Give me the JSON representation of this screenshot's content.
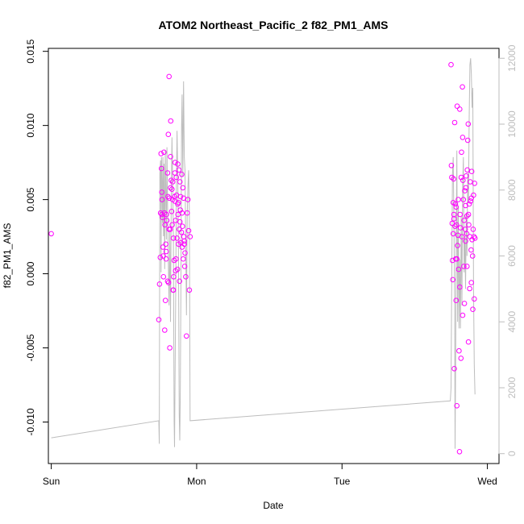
{
  "chart_data": {
    "type": "scatter",
    "title": "ATOM2 Northeast_Pacific_2 f82_PM1_AMS",
    "xlabel": "Date",
    "ylabel": "f82_PM1_AMS",
    "x_ticks": [
      "Sun",
      "Mon",
      "Tue",
      "Wed"
    ],
    "xlim": [
      -0.02,
      3.08
    ],
    "ylim": [
      -0.0128,
      0.0152
    ],
    "y_ticks": [
      -0.01,
      -0.005,
      0.0,
      0.005,
      0.01,
      0.015
    ],
    "y_tick_labels": [
      "-0.010",
      "-0.005",
      "0.000",
      "0.005",
      "0.010",
      "0.015"
    ],
    "y2lim": [
      -300,
      12300
    ],
    "y2_ticks": [
      0,
      2000,
      4000,
      6000,
      8000,
      10000,
      12000
    ],
    "y2_tick_labels": [
      "0",
      "2000",
      "4000",
      "6000",
      "8000",
      "10000",
      "12000"
    ],
    "grid": false,
    "colors": {
      "points": "#ff00ff",
      "secondary_line": "#bdbdbd",
      "axes": "#000000",
      "secondary_axis": "#bdbdbd"
    },
    "series": [
      {
        "kind": "points",
        "axis": "left",
        "points": [
          [
            0.0,
            0.0027
          ],
          [
            0.74,
            -0.0031
          ],
          [
            0.745,
            -0.0007
          ],
          [
            0.75,
            0.0011
          ],
          [
            0.752,
            0.0041
          ],
          [
            0.755,
            0.0081
          ],
          [
            0.758,
            0.0071
          ],
          [
            0.76,
            0.0055
          ],
          [
            0.762,
            0.005
          ],
          [
            0.765,
            0.0038
          ],
          [
            0.768,
            0.0018
          ],
          [
            0.77,
            0.0012
          ],
          [
            0.772,
            -0.0002
          ],
          [
            0.775,
            0.0082
          ],
          [
            0.778,
            0.0041
          ],
          [
            0.78,
            -0.0038
          ],
          [
            0.782,
            0.0033
          ],
          [
            0.785,
            -0.0018
          ],
          [
            0.788,
            0.002
          ],
          [
            0.79,
            0.0015
          ],
          [
            0.792,
            0.004
          ],
          [
            0.795,
            0.0036
          ],
          [
            0.8,
            0.0068
          ],
          [
            0.803,
            0.0052
          ],
          [
            0.805,
            0.0094
          ],
          [
            0.807,
            -0.0006
          ],
          [
            0.81,
            0.0133
          ],
          [
            0.812,
            0.0051
          ],
          [
            0.815,
            -0.005
          ],
          [
            0.818,
            0.003
          ],
          [
            0.82,
            0.0079
          ],
          [
            0.822,
            0.0103
          ],
          [
            0.825,
            0.0063
          ],
          [
            0.828,
            0.0042
          ],
          [
            0.83,
            0.0057
          ],
          [
            0.832,
            0.0033
          ],
          [
            0.835,
            0.005
          ],
          [
            0.838,
            -0.0011
          ],
          [
            0.84,
            0.0024
          ],
          [
            0.842,
            -0.0002
          ],
          [
            0.845,
            0.0009
          ],
          [
            0.848,
            0.0052
          ],
          [
            0.85,
            0.0068
          ],
          [
            0.852,
            0.0075
          ],
          [
            0.855,
            0.0036
          ],
          [
            0.858,
            0.001
          ],
          [
            0.86,
            0.0065
          ],
          [
            0.862,
            0.0053
          ],
          [
            0.865,
            0.0024
          ],
          [
            0.868,
            0.0003
          ],
          [
            0.87,
            0.0074
          ],
          [
            0.872,
            0.004
          ],
          [
            0.875,
            0.0048
          ],
          [
            0.878,
            0.007
          ],
          [
            0.88,
            0.003
          ],
          [
            0.882,
            -0.0005
          ],
          [
            0.885,
            0.0062
          ],
          [
            0.888,
            0.0043
          ],
          [
            0.89,
            0.0052
          ],
          [
            0.892,
            0.0021
          ],
          [
            0.895,
            0.0028
          ],
          [
            0.898,
            0.0067
          ],
          [
            0.9,
            0.0018
          ],
          [
            0.902,
            0.0032
          ],
          [
            0.905,
            0.0058
          ],
          [
            0.908,
            0.001
          ],
          [
            0.91,
            0.0051
          ],
          [
            0.912,
            0.0025
          ],
          [
            0.915,
            0.0022
          ],
          [
            0.918,
            0.0005
          ],
          [
            0.92,
            0.0014
          ],
          [
            0.925,
            -0.0002
          ],
          [
            0.93,
            -0.0042
          ],
          [
            0.935,
            0.0041
          ],
          [
            0.94,
            0.005
          ],
          [
            0.945,
            0.0029
          ],
          [
            0.95,
            -0.0011
          ],
          [
            0.955,
            0.0025
          ],
          [
            0.8,
            -0.0005
          ],
          [
            0.81,
            0.003
          ],
          [
            0.82,
            0.0058
          ],
          [
            0.835,
            0.0062
          ],
          [
            0.84,
            -0.0011
          ],
          [
            0.855,
            0.0002
          ],
          [
            0.87,
            0.0047
          ],
          [
            0.885,
            0.0035
          ],
          [
            0.9,
            0.0041
          ],
          [
            0.915,
            0.002
          ],
          [
            0.76,
            0.004
          ],
          [
            0.79,
            0.001
          ],
          [
            0.85,
            0.0049
          ],
          [
            0.875,
            0.002
          ],
          [
            2.75,
            0.0141
          ],
          [
            2.752,
            0.0073
          ],
          [
            2.755,
            0.0065
          ],
          [
            2.758,
            0.0034
          ],
          [
            2.76,
            0.0009
          ],
          [
            2.762,
            -0.0004
          ],
          [
            2.765,
            0.0048
          ],
          [
            2.768,
            0.0064
          ],
          [
            2.77,
            0.0037
          ],
          [
            2.772,
            -0.0064
          ],
          [
            2.775,
            0.0102
          ],
          [
            2.778,
            0.0032
          ],
          [
            2.78,
            0.0047
          ],
          [
            2.782,
            0.001
          ],
          [
            2.785,
            -0.0018
          ],
          [
            2.788,
            0.0033
          ],
          [
            2.79,
            -0.0089
          ],
          [
            2.792,
            0.0113
          ],
          [
            2.795,
            0.0019
          ],
          [
            2.798,
            0.0026
          ],
          [
            2.8,
            0.005
          ],
          [
            2.802,
            0.0003
          ],
          [
            2.805,
            -0.0052
          ],
          [
            2.808,
            -0.012
          ],
          [
            2.81,
            0.0111
          ],
          [
            2.812,
            0.004
          ],
          [
            2.815,
            0.0031
          ],
          [
            2.818,
            -0.0057
          ],
          [
            2.82,
            0.0065
          ],
          [
            2.822,
            0.0082
          ],
          [
            2.825,
            0.0025
          ],
          [
            2.828,
            0.0126
          ],
          [
            2.83,
            0.0092
          ],
          [
            2.832,
            0.0063
          ],
          [
            2.835,
            0.005
          ],
          [
            2.838,
            0.0005
          ],
          [
            2.84,
            0.0036
          ],
          [
            2.842,
            -0.002
          ],
          [
            2.845,
            0.0056
          ],
          [
            2.848,
            0.003
          ],
          [
            2.85,
            0.0046
          ],
          [
            2.852,
            0.0058
          ],
          [
            2.855,
            0.0066
          ],
          [
            2.858,
            0.0027
          ],
          [
            2.86,
            0.0039
          ],
          [
            2.862,
            0.007
          ],
          [
            2.865,
            0.009
          ],
          [
            2.868,
            0.0101
          ],
          [
            2.87,
            0.004
          ],
          [
            2.872,
            0.0033
          ],
          [
            2.875,
            0.0047
          ],
          [
            2.878,
            -0.001
          ],
          [
            2.88,
            0.0025
          ],
          [
            2.882,
            0.0062
          ],
          [
            2.885,
            0.0049
          ],
          [
            2.888,
            0.0016
          ],
          [
            2.89,
            -0.0006
          ],
          [
            2.892,
            0.0069
          ],
          [
            2.895,
            0.0023
          ],
          [
            2.898,
            0.0012
          ],
          [
            2.9,
            -0.0024
          ],
          [
            2.902,
            0.003
          ],
          [
            2.905,
            0.0053
          ],
          [
            2.908,
            0.0025
          ],
          [
            2.91,
            -0.0017
          ],
          [
            2.912,
            0.0061
          ],
          [
            2.915,
            0.0024
          ],
          [
            2.77,
            0.004
          ],
          [
            2.79,
            0.001
          ],
          [
            2.81,
            -0.0009
          ],
          [
            2.83,
            -0.0028
          ],
          [
            2.85,
            0.0022
          ],
          [
            2.87,
            -0.0046
          ],
          [
            2.89,
            0.0051
          ],
          [
            2.765,
            0.0027
          ],
          [
            2.785,
            0.0045
          ],
          [
            2.86,
            0.0005
          ]
        ]
      },
      {
        "kind": "line",
        "axis": "right",
        "points": [
          [
            0.0,
            480
          ],
          [
            0.74,
            1000
          ],
          [
            0.743,
            300
          ],
          [
            0.747,
            8500
          ],
          [
            0.752,
            8900
          ],
          [
            0.755,
            5500
          ],
          [
            0.758,
            9000
          ],
          [
            0.762,
            8200
          ],
          [
            0.765,
            7000
          ],
          [
            0.768,
            9000
          ],
          [
            0.772,
            6600
          ],
          [
            0.776,
            8800
          ],
          [
            0.78,
            5600
          ],
          [
            0.784,
            9200
          ],
          [
            0.788,
            8000
          ],
          [
            0.792,
            6500
          ],
          [
            0.796,
            9300
          ],
          [
            0.8,
            7500
          ],
          [
            0.805,
            5800
          ],
          [
            0.81,
            4500
          ],
          [
            0.815,
            6800
          ],
          [
            0.82,
            4000
          ],
          [
            0.825,
            7600
          ],
          [
            0.83,
            9600
          ],
          [
            0.835,
            8200
          ],
          [
            0.84,
            6500
          ],
          [
            0.845,
            1000
          ],
          [
            0.848,
            200
          ],
          [
            0.852,
            2500
          ],
          [
            0.856,
            5000
          ],
          [
            0.86,
            7900
          ],
          [
            0.865,
            9800
          ],
          [
            0.87,
            8500
          ],
          [
            0.875,
            6000
          ],
          [
            0.88,
            1200
          ],
          [
            0.884,
            400
          ],
          [
            0.888,
            2000
          ],
          [
            0.892,
            5500
          ],
          [
            0.896,
            9900
          ],
          [
            0.9,
            10900
          ],
          [
            0.905,
            8400
          ],
          [
            0.91,
            11300
          ],
          [
            0.915,
            9000
          ],
          [
            0.92,
            8600
          ],
          [
            0.925,
            6300
          ],
          [
            0.93,
            4200
          ],
          [
            0.935,
            7200
          ],
          [
            0.94,
            8100
          ],
          [
            0.945,
            8600
          ],
          [
            0.95,
            7300
          ],
          [
            0.955,
            1000
          ],
          [
            2.745,
            1600
          ],
          [
            2.75,
            2000
          ],
          [
            2.755,
            5500
          ],
          [
            2.76,
            8500
          ],
          [
            2.765,
            9000
          ],
          [
            2.77,
            7000
          ],
          [
            2.775,
            4500
          ],
          [
            2.778,
            150
          ],
          [
            2.782,
            3300
          ],
          [
            2.786,
            6800
          ],
          [
            2.79,
            9200
          ],
          [
            2.795,
            4000
          ],
          [
            2.8,
            7500
          ],
          [
            2.805,
            3800
          ],
          [
            2.81,
            5900
          ],
          [
            2.815,
            3800
          ],
          [
            2.82,
            7200
          ],
          [
            2.825,
            4500
          ],
          [
            2.83,
            8100
          ],
          [
            2.835,
            9000
          ],
          [
            2.84,
            5500
          ],
          [
            2.845,
            6600
          ],
          [
            2.85,
            5000
          ],
          [
            2.855,
            7300
          ],
          [
            2.86,
            6000
          ],
          [
            2.865,
            8500
          ],
          [
            2.87,
            7600
          ],
          [
            2.875,
            10200
          ],
          [
            2.88,
            11800
          ],
          [
            2.885,
            12000
          ],
          [
            2.89,
            11500
          ],
          [
            2.895,
            10500
          ],
          [
            2.9,
            11100
          ],
          [
            2.905,
            5000
          ],
          [
            2.91,
            2700
          ],
          [
            2.915,
            1800
          ]
        ]
      }
    ]
  }
}
